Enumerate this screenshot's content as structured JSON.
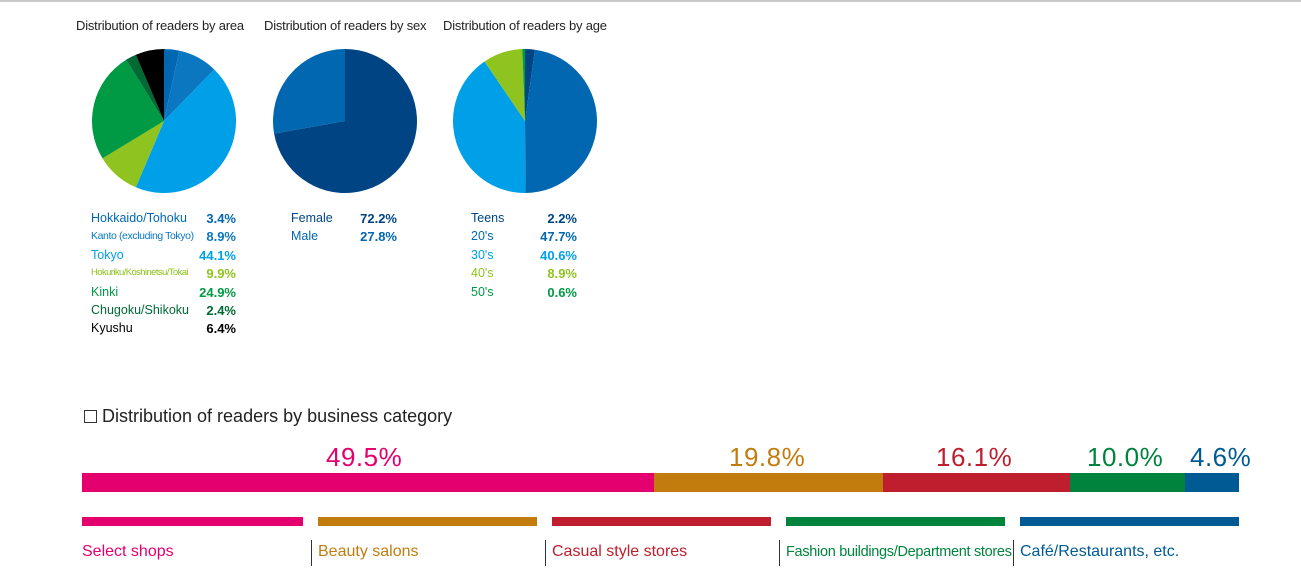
{
  "chart_data": [
    {
      "type": "pie",
      "title": "Distribution of readers by area",
      "slices": [
        {
          "label": "Hokkaido/Tohoku",
          "value_text": "3.4%",
          "value": 3.4,
          "color": "#0067b0"
        },
        {
          "label": "Kanto (excluding Tokyo)",
          "value_text": "8.9%",
          "value": 8.9,
          "color": "#0a77c0"
        },
        {
          "label": "Tokyo",
          "value_text": "44.1%",
          "value": 44.1,
          "color": "#00a0e9"
        },
        {
          "label": "Hokuriku/Koshinetsu/Tokai",
          "value_text": "9.9%",
          "value": 9.9,
          "color": "#8fc31f"
        },
        {
          "label": "Kinki",
          "value_text": "24.9%",
          "value": 24.9,
          "color": "#009944"
        },
        {
          "label": "Chugoku/Shikoku",
          "value_text": "2.4%",
          "value": 2.4,
          "color": "#006934"
        },
        {
          "label": "Kyushu",
          "value_text": "6.4%",
          "value": 6.4,
          "color": "#000000"
        }
      ]
    },
    {
      "type": "pie",
      "title": "Distribution of readers by sex",
      "slices": [
        {
          "label": "Female",
          "value_text": "72.2%",
          "value": 72.2,
          "color": "#004484"
        },
        {
          "label": "Male",
          "value_text": "27.8%",
          "value": 27.8,
          "color": "#0067b0"
        }
      ]
    },
    {
      "type": "pie",
      "title": "Distribution of readers by age",
      "slices": [
        {
          "label": "Teens",
          "value_text": "2.2%",
          "value": 2.2,
          "color": "#004484"
        },
        {
          "label": "20's",
          "value_text": "47.7%",
          "value": 47.7,
          "color": "#0067b0"
        },
        {
          "label": "30's",
          "value_text": "40.6%",
          "value": 40.6,
          "color": "#00a0e9"
        },
        {
          "label": "40's",
          "value_text": "8.9%",
          "value": 8.9,
          "color": "#8fc31f"
        },
        {
          "label": "50's",
          "value_text": "0.6%",
          "value": 0.6,
          "color": "#009944"
        }
      ]
    },
    {
      "type": "bar",
      "orientation": "horizontal-stacked",
      "title": "Distribution of readers by business category",
      "segments": [
        {
          "label": "Select shops",
          "value_text": "49.5%",
          "value": 49.5,
          "color": "#e4006e"
        },
        {
          "label": "Beauty salons",
          "value_text": "19.8%",
          "value": 19.8,
          "color": "#c27c0e"
        },
        {
          "label": "Casual style stores",
          "value_text": "16.1%",
          "value": 16.1,
          "color": "#be1e2d"
        },
        {
          "label": "Fashion buildings/Department stores",
          "value_text": "10.0%",
          "value": 10.0,
          "color": "#00843d"
        },
        {
          "label": "Café/Restaurants, etc.",
          "value_text": "4.6%",
          "value": 4.6,
          "color": "#005a94"
        }
      ]
    }
  ]
}
